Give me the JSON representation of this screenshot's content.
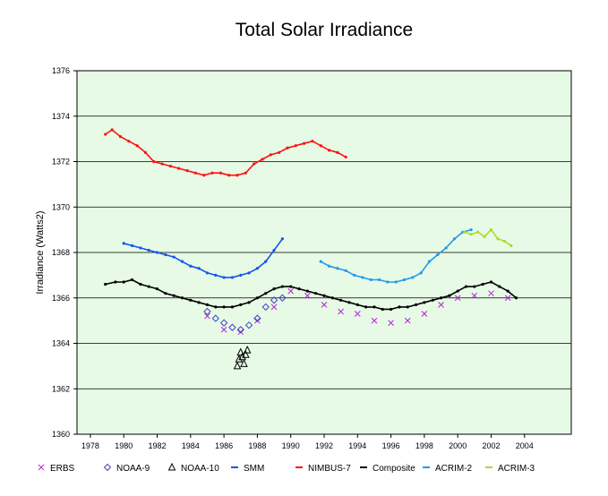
{
  "chart_data": {
    "type": "scatter",
    "title": "Total Solar Irradiance",
    "ylabel": "Irradiance (Watts2)",
    "xlabel": "",
    "xlim": [
      1977.2,
      2006.8
    ],
    "ylim": [
      1360,
      1376
    ],
    "x_ticks": [
      1978,
      1980,
      1982,
      1984,
      1986,
      1988,
      1990,
      1992,
      1994,
      1996,
      1998,
      2000,
      2002,
      2004
    ],
    "y_ticks": [
      1360,
      1362,
      1364,
      1366,
      1368,
      1370,
      1372,
      1374,
      1376
    ],
    "background": "#e6fae6",
    "grid": "horizontal",
    "legend_position": "bottom",
    "series": [
      {
        "name": "ERBS",
        "marker": "x",
        "color": "#bb22dd",
        "x": [
          1985.0,
          1986.0,
          1987.0,
          1988.0,
          1989.0,
          1990.0,
          1991.0,
          1992.0,
          1993.0,
          1994.0,
          1995.0,
          1996.0,
          1997.0,
          1998.0,
          1999.0,
          2000.0,
          2001.0,
          2002.0,
          2003.0
        ],
        "y": [
          1365.2,
          1364.6,
          1364.5,
          1365.0,
          1365.6,
          1366.3,
          1366.1,
          1365.7,
          1365.4,
          1365.3,
          1365.0,
          1364.9,
          1365.0,
          1365.3,
          1365.7,
          1366.0,
          1366.1,
          1366.2,
          1366.0
        ]
      },
      {
        "name": "NOAA-9",
        "marker": "diamond",
        "color": "#4444bb",
        "x": [
          1985.0,
          1985.5,
          1986.0,
          1986.5,
          1987.0,
          1987.5,
          1988.0,
          1988.5,
          1989.0,
          1989.5
        ],
        "y": [
          1365.4,
          1365.1,
          1364.9,
          1364.7,
          1364.6,
          1364.8,
          1365.1,
          1365.6,
          1365.9,
          1366.0
        ]
      },
      {
        "name": "NOAA-10",
        "marker": "triangle",
        "color": "#000000",
        "x": [
          1986.8,
          1986.9,
          1987.0,
          1987.1,
          1987.2,
          1987.3,
          1987.4
        ],
        "y": [
          1363.0,
          1363.3,
          1363.6,
          1363.4,
          1363.1,
          1363.5,
          1363.7
        ]
      },
      {
        "name": "SMM",
        "marker": "line",
        "color": "#1155ee",
        "x": [
          1980.0,
          1980.5,
          1981.0,
          1981.5,
          1982.0,
          1982.5,
          1983.0,
          1983.5,
          1984.0,
          1984.5,
          1985.0,
          1985.5,
          1986.0,
          1986.5,
          1987.0,
          1987.5,
          1988.0,
          1988.5,
          1989.0,
          1989.5
        ],
        "y": [
          1368.4,
          1368.3,
          1368.2,
          1368.1,
          1368.0,
          1367.9,
          1367.8,
          1367.6,
          1367.4,
          1367.3,
          1367.1,
          1367.0,
          1366.9,
          1366.9,
          1367.0,
          1367.1,
          1367.3,
          1367.6,
          1368.1,
          1368.6
        ]
      },
      {
        "name": "NIMBUS-7",
        "marker": "line",
        "color": "#ff1111",
        "x": [
          1978.9,
          1979.3,
          1979.8,
          1980.3,
          1980.8,
          1981.3,
          1981.8,
          1982.3,
          1982.8,
          1983.3,
          1983.8,
          1984.3,
          1984.8,
          1985.3,
          1985.8,
          1986.3,
          1986.8,
          1987.3,
          1987.8,
          1988.3,
          1988.8,
          1989.3,
          1989.8,
          1990.3,
          1990.8,
          1991.3,
          1991.8,
          1992.3,
          1992.8,
          1993.3
        ],
        "y": [
          1373.2,
          1373.4,
          1373.1,
          1372.9,
          1372.7,
          1372.4,
          1372.0,
          1371.9,
          1371.8,
          1371.7,
          1371.6,
          1371.5,
          1371.4,
          1371.5,
          1371.5,
          1371.4,
          1371.4,
          1371.5,
          1371.9,
          1372.1,
          1372.3,
          1372.4,
          1372.6,
          1372.7,
          1372.8,
          1372.9,
          1372.7,
          1372.5,
          1372.4,
          1372.2
        ]
      },
      {
        "name": "Composite",
        "marker": "line",
        "color": "#000000",
        "x": [
          1978.9,
          1979.5,
          1980.0,
          1980.5,
          1981.0,
          1981.5,
          1982.0,
          1982.5,
          1983.0,
          1983.5,
          1984.0,
          1984.5,
          1985.0,
          1985.5,
          1986.0,
          1986.5,
          1987.0,
          1987.5,
          1988.0,
          1988.5,
          1989.0,
          1989.5,
          1990.0,
          1990.5,
          1991.0,
          1991.5,
          1992.0,
          1992.5,
          1993.0,
          1993.5,
          1994.0,
          1994.5,
          1995.0,
          1995.5,
          1996.0,
          1996.5,
          1997.0,
          1997.5,
          1998.0,
          1998.5,
          1999.0,
          1999.5,
          2000.0,
          2000.5,
          2001.0,
          2001.5,
          2002.0,
          2002.5,
          2003.0,
          2003.5
        ],
        "y": [
          1366.6,
          1366.7,
          1366.7,
          1366.8,
          1366.6,
          1366.5,
          1366.4,
          1366.2,
          1366.1,
          1366.0,
          1365.9,
          1365.8,
          1365.7,
          1365.6,
          1365.6,
          1365.6,
          1365.7,
          1365.8,
          1366.0,
          1366.2,
          1366.4,
          1366.5,
          1366.5,
          1366.4,
          1366.3,
          1366.2,
          1366.1,
          1366.0,
          1365.9,
          1365.8,
          1365.7,
          1365.6,
          1365.6,
          1365.5,
          1365.5,
          1365.6,
          1365.6,
          1365.7,
          1365.8,
          1365.9,
          1366.0,
          1366.1,
          1366.3,
          1366.5,
          1366.5,
          1366.6,
          1366.7,
          1366.5,
          1366.3,
          1366.0
        ]
      },
      {
        "name": "ACRIM-2",
        "marker": "line",
        "color": "#2299ee",
        "x": [
          1991.8,
          1992.3,
          1992.8,
          1993.3,
          1993.8,
          1994.3,
          1994.8,
          1995.3,
          1995.8,
          1996.3,
          1996.8,
          1997.3,
          1997.8,
          1998.3,
          1998.8,
          1999.3,
          1999.8,
          2000.3,
          2000.8
        ],
        "y": [
          1367.6,
          1367.4,
          1367.3,
          1367.2,
          1367.0,
          1366.9,
          1366.8,
          1366.8,
          1366.7,
          1366.7,
          1366.8,
          1366.9,
          1367.1,
          1367.6,
          1367.9,
          1368.2,
          1368.6,
          1368.9,
          1369.0
        ]
      },
      {
        "name": "ACRIM-3",
        "marker": "line",
        "color": "#aadd22",
        "x": [
          2000.4,
          2000.8,
          2001.2,
          2001.6,
          2002.0,
          2002.4,
          2002.8,
          2003.2
        ],
        "y": [
          1368.9,
          1368.8,
          1368.9,
          1368.7,
          1369.0,
          1368.6,
          1368.5,
          1368.3
        ]
      }
    ]
  }
}
